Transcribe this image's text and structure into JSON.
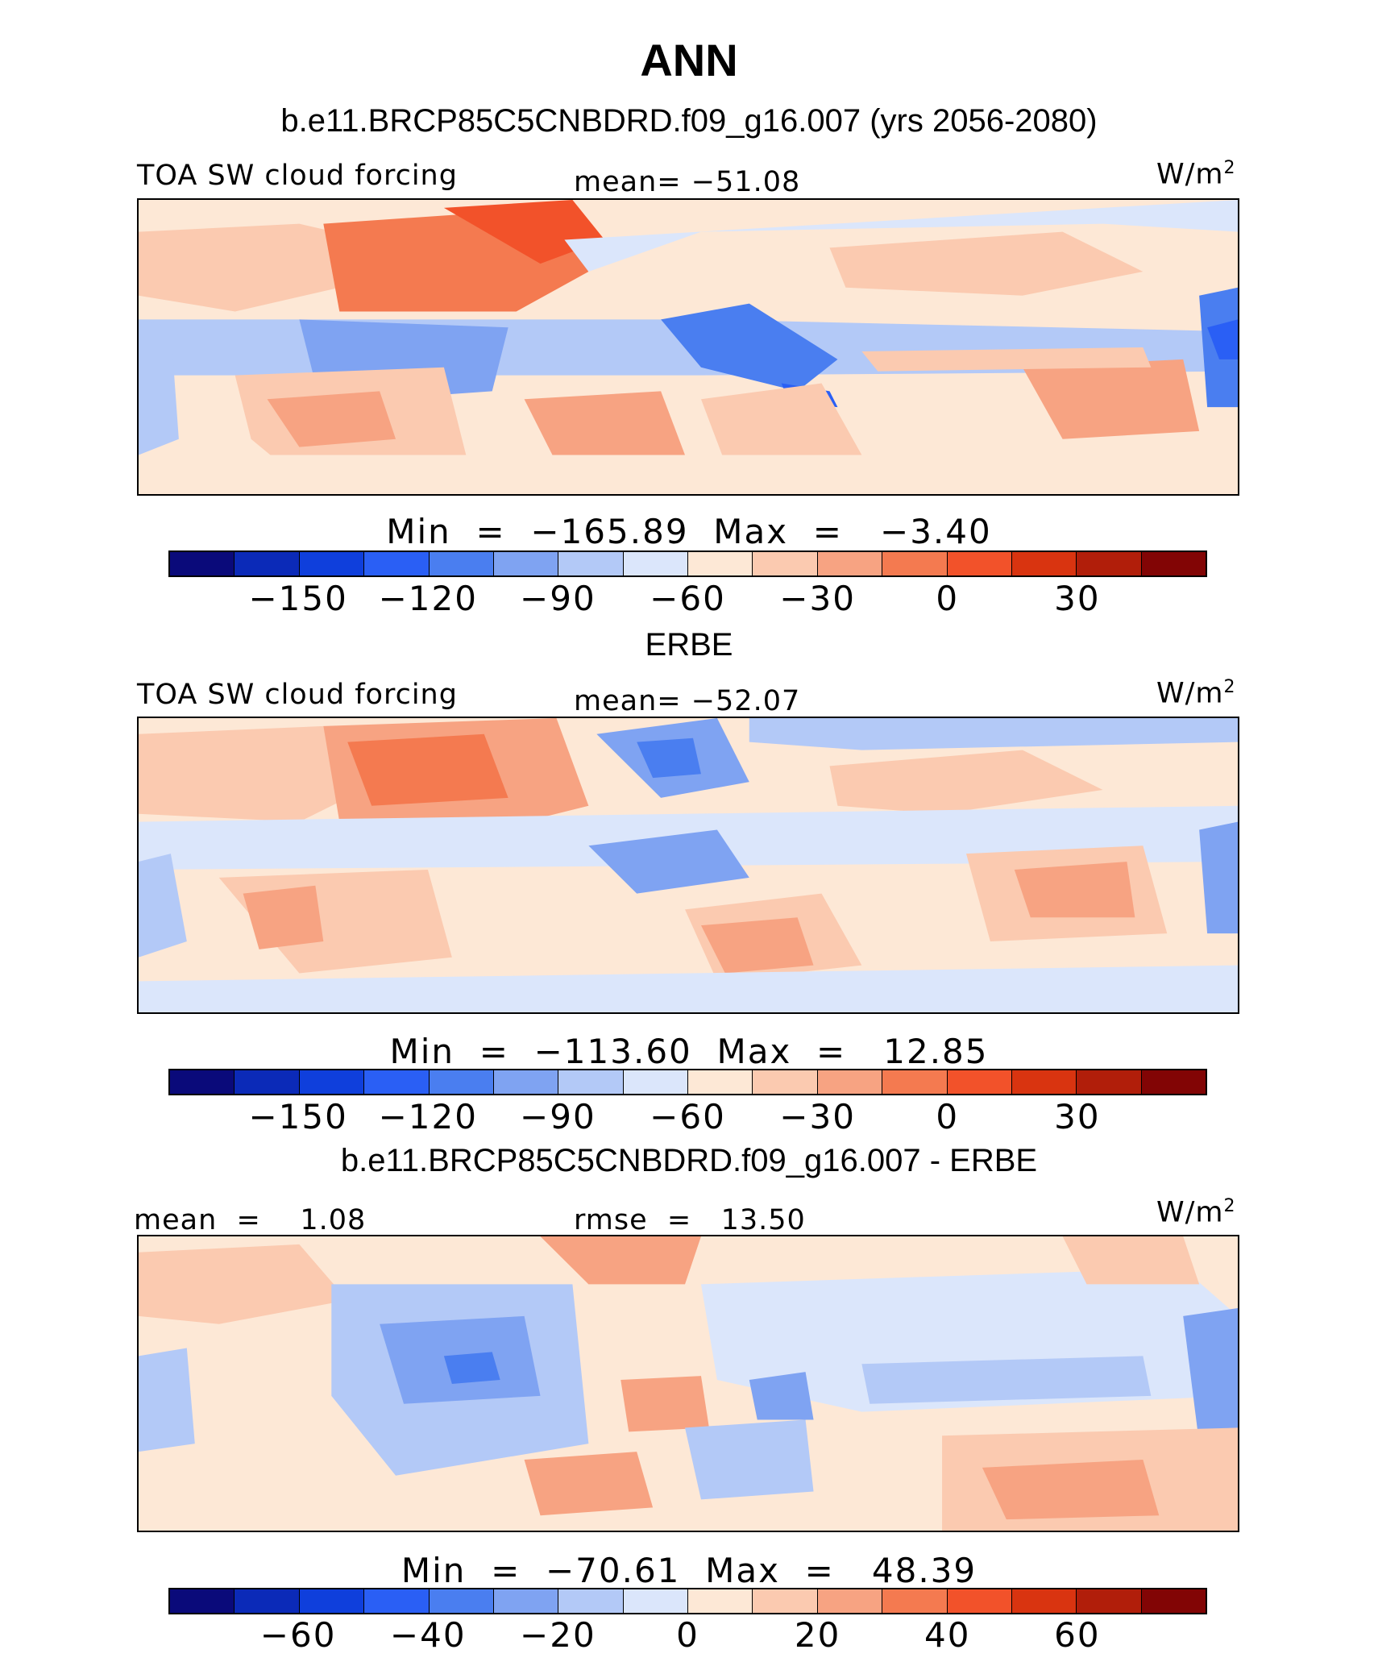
{
  "main_title": "ANN",
  "subtitle": "b.e11.BRCP85C5CNBDRD.f09_g16.007 (yrs 2056-2080)",
  "panels": [
    {
      "heading": "",
      "left_label": "TOA SW cloud forcing",
      "center_label": "mean= −51.08",
      "unit": "W/m",
      "unit_sup": "2",
      "stats": "Min  =  −165.89  Max  =   −3.40",
      "ticks": [
        "−150",
        "−120",
        "−90",
        "−60",
        "−30",
        "0",
        "30"
      ]
    },
    {
      "heading": "ERBE",
      "left_label": "TOA SW cloud forcing",
      "center_label": "mean= −52.07",
      "unit": "W/m",
      "unit_sup": "2",
      "stats": "Min  =  −113.60  Max  =   12.85",
      "ticks": [
        "−150",
        "−120",
        "−90",
        "−60",
        "−30",
        "0",
        "30"
      ]
    },
    {
      "heading": "b.e11.BRCP85C5CNBDRD.f09_g16.007 - ERBE",
      "left_label": "mean  =    1.08",
      "center_label": "rmse  =   13.50",
      "unit": "W/m",
      "unit_sup": "2",
      "stats": "Min  =  −70.61  Max  =   48.39",
      "ticks": [
        "−60",
        "−40",
        "−20",
        "0",
        "20",
        "40",
        "60"
      ]
    }
  ],
  "colorbar_colors": [
    "#0a0a7a",
    "#0b2ab8",
    "#0f3fdc",
    "#2a5ff5",
    "#4a7ef0",
    "#7fa3f2",
    "#b3c9f7",
    "#dbe6fb",
    "#fde8d6",
    "#fbcab0",
    "#f7a382",
    "#f47a50",
    "#f2522a",
    "#d93410",
    "#b11e0a",
    "#820505"
  ],
  "map_colors": {
    "deep_blue": "#2a5ff5",
    "mid_blue": "#7fa3f2",
    "light_blue": "#b3c9f7",
    "pale_blue": "#dbe6fb",
    "pale_orange": "#fde8d6",
    "light_orange": "#fbcab0",
    "mid_orange": "#f7a382",
    "strong_orange": "#f47a50",
    "deep_orange": "#f2522a"
  }
}
